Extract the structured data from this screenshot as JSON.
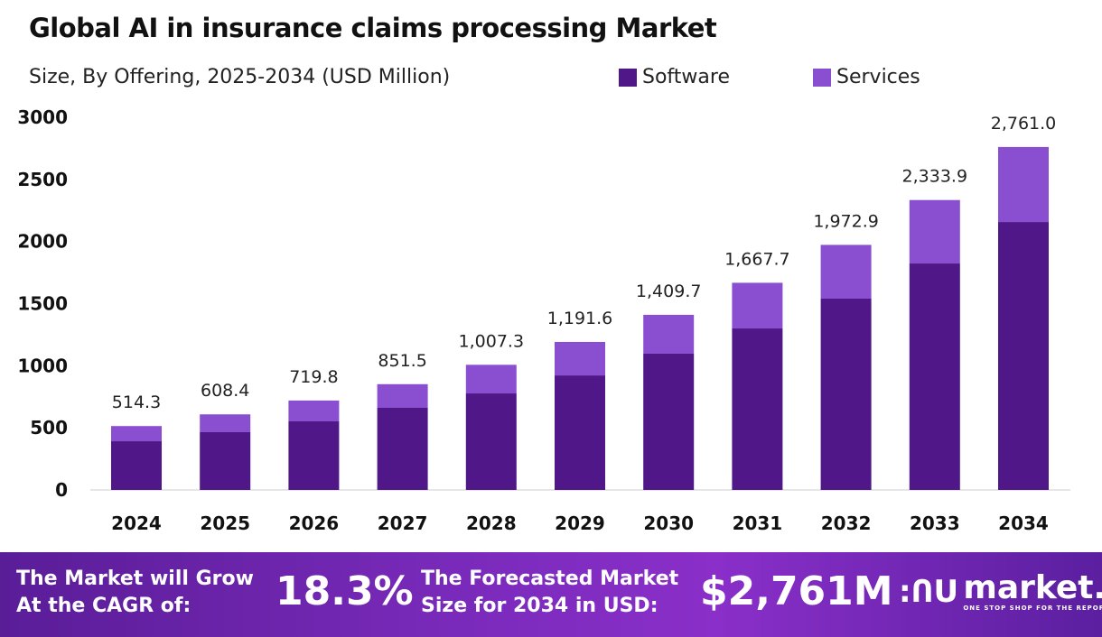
{
  "chart_data": {
    "type": "bar",
    "stacked": true,
    "title": "Global AI in insurance claims processing Market",
    "subtitle": "Size, By Offering, 2025-2034 (USD Million)",
    "categories": [
      "2024",
      "2025",
      "2026",
      "2027",
      "2028",
      "2029",
      "2030",
      "2031",
      "2032",
      "2033",
      "2034"
    ],
    "series": [
      {
        "name": "Software",
        "color": "#4f1787",
        "values": [
          392,
          465,
          552,
          661,
          777,
          922,
          1097,
          1300,
          1540,
          1823,
          2157
        ]
      },
      {
        "name": "Services",
        "color": "#8a4fd0",
        "values": [
          122.3,
          143.4,
          167.8,
          190.5,
          230.3,
          269.6,
          312.7,
          367.7,
          432.9,
          510.9,
          604.0
        ]
      }
    ],
    "totals": [
      514.3,
      608.4,
      719.8,
      851.5,
      1007.3,
      1191.6,
      1409.7,
      1667.7,
      1972.9,
      2333.9,
      2761.0
    ],
    "total_labels": [
      "514.3",
      "608.4",
      "719.8",
      "851.5",
      "1,007.3",
      "1,191.6",
      "1,409.7",
      "1,667.7",
      "1,972.9",
      "2,333.9",
      "2,761.0"
    ],
    "yticks": [
      "0",
      "500",
      "1000",
      "1500",
      "2000",
      "2500",
      "3000"
    ],
    "ylim": [
      0,
      3000
    ],
    "xlabel": "",
    "ylabel": "",
    "grid": false,
    "legend_placement": "top-right"
  },
  "footer": {
    "cagr_label_1": "The Market will Grow",
    "cagr_label_2": "At the CAGR of:",
    "cagr_value": "18.3%",
    "forecast_label_1": "The Forecasted Market",
    "forecast_label_2": "Size for 2034 in USD:",
    "forecast_value": "$2,761M",
    "logo_name": "market.us",
    "logo_tagline": "ONE STOP SHOP FOR THE REPORTS"
  }
}
